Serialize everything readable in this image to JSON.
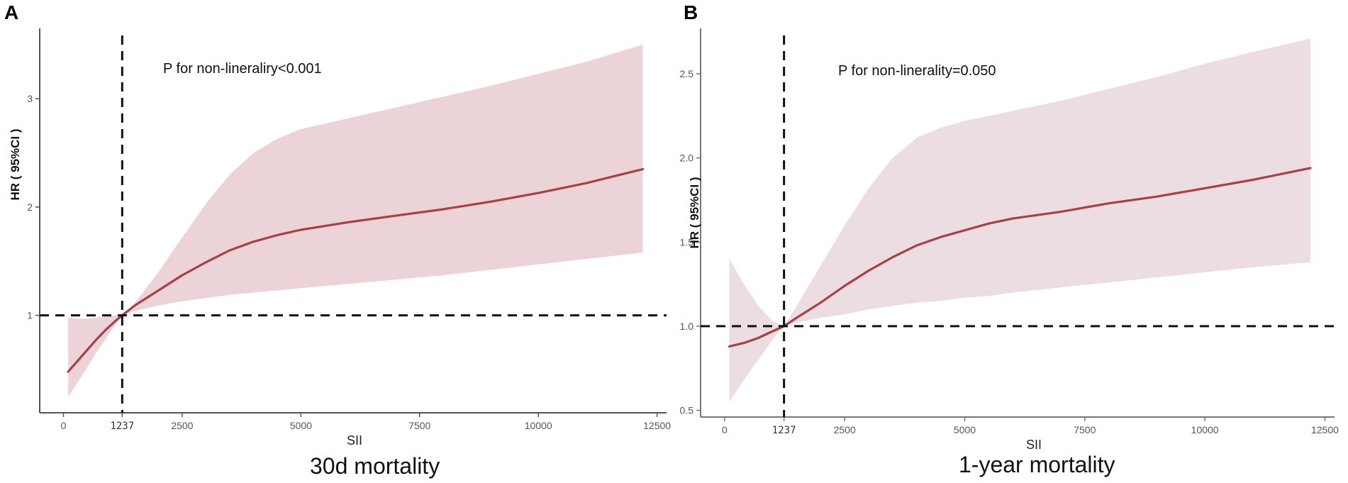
{
  "chart_data": [
    {
      "panel_label": "A",
      "type": "line",
      "title": "30d mortality",
      "xlabel": "SII",
      "ylabel": "HR ( 95%CI )",
      "annotation": "P for non-lineraliry<0.001",
      "xlim": [
        -500,
        12700
      ],
      "ylim": [
        0.1,
        3.65
      ],
      "x_ticks": [
        0,
        1237,
        2500,
        5000,
        7500,
        10000,
        12500
      ],
      "x_tick_labels": [
        "0",
        "1237",
        "2500",
        "5000",
        "7500",
        "10000",
        "12500"
      ],
      "y_ticks": [
        1,
        2,
        3
      ],
      "y_tick_labels": [
        "1",
        "2",
        "3"
      ],
      "reference_lines": {
        "x": 1237,
        "y": 1
      },
      "band_color": "#ecd3d8",
      "line_color": "#a94045",
      "series": [
        {
          "x": [
            100,
            300,
            500,
            700,
            900,
            1100,
            1237,
            1500,
            2000,
            2500,
            3000,
            3500,
            4000,
            4500,
            5000,
            6000,
            7000,
            8000,
            9000,
            10000,
            11000,
            12200
          ],
          "y": [
            0.48,
            0.58,
            0.68,
            0.78,
            0.87,
            0.95,
            1.0,
            1.09,
            1.23,
            1.37,
            1.49,
            1.6,
            1.68,
            1.74,
            1.79,
            1.86,
            1.92,
            1.98,
            2.05,
            2.13,
            2.22,
            2.35
          ],
          "lower": [
            0.25,
            0.38,
            0.52,
            0.66,
            0.79,
            0.92,
            1.0,
            1.04,
            1.09,
            1.13,
            1.16,
            1.19,
            1.21,
            1.23,
            1.25,
            1.29,
            1.33,
            1.37,
            1.42,
            1.47,
            1.52,
            1.58
          ],
          "upper": [
            0.98,
            0.97,
            0.97,
            0.98,
            0.99,
            1.0,
            1.0,
            1.11,
            1.4,
            1.72,
            2.03,
            2.3,
            2.5,
            2.63,
            2.72,
            2.82,
            2.92,
            3.02,
            3.12,
            3.23,
            3.34,
            3.5
          ]
        }
      ]
    },
    {
      "panel_label": "B",
      "type": "line",
      "title": "1-year mortality",
      "xlabel": "SII",
      "ylabel": "HR ( 95%CI )",
      "annotation": "P for non-linerality=0.050",
      "xlim": [
        -500,
        12700
      ],
      "ylim": [
        0.46,
        2.77
      ],
      "x_ticks": [
        0,
        1237,
        2500,
        5000,
        7500,
        10000,
        12500
      ],
      "x_tick_labels": [
        "0",
        "1237",
        "2500",
        "5000",
        "7500",
        "10000",
        "12500"
      ],
      "y_ticks": [
        0.5,
        1.0,
        1.5,
        2.0,
        2.5
      ],
      "y_tick_labels": [
        "0.5",
        "1.0",
        "1.5",
        "2.0",
        "2.5"
      ],
      "reference_lines": {
        "x": 1237,
        "y": 1.0
      },
      "band_color": "#ecdde2",
      "line_color": "#a94045",
      "series": [
        {
          "x": [
            100,
            400,
            700,
            1000,
            1237,
            1500,
            2000,
            2500,
            3000,
            3500,
            4000,
            4500,
            5000,
            5500,
            6000,
            7000,
            8000,
            9000,
            10000,
            11000,
            12200
          ],
          "y": [
            0.88,
            0.9,
            0.93,
            0.97,
            1.0,
            1.05,
            1.14,
            1.24,
            1.33,
            1.41,
            1.48,
            1.53,
            1.57,
            1.61,
            1.64,
            1.68,
            1.73,
            1.77,
            1.82,
            1.87,
            1.94
          ],
          "lower": [
            0.55,
            0.68,
            0.8,
            0.92,
            1.0,
            1.02,
            1.05,
            1.07,
            1.1,
            1.12,
            1.14,
            1.15,
            1.17,
            1.18,
            1.2,
            1.23,
            1.26,
            1.29,
            1.32,
            1.35,
            1.38
          ],
          "upper": [
            1.4,
            1.25,
            1.12,
            1.03,
            1.0,
            1.12,
            1.36,
            1.6,
            1.82,
            2.0,
            2.12,
            2.18,
            2.22,
            2.25,
            2.28,
            2.34,
            2.41,
            2.48,
            2.56,
            2.63,
            2.71
          ]
        }
      ]
    }
  ]
}
